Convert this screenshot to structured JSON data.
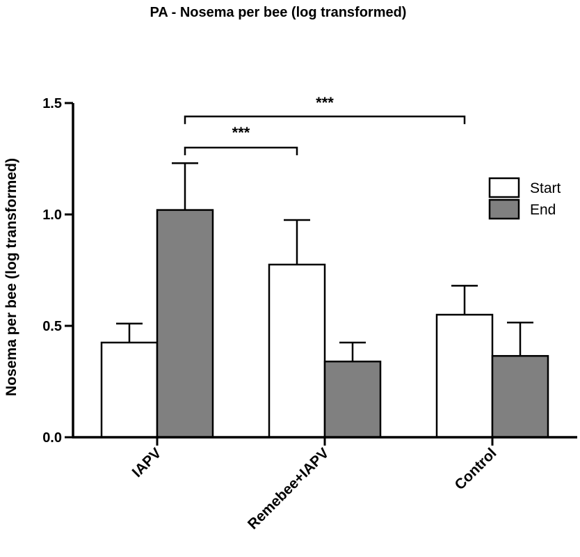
{
  "chart_data": {
    "type": "bar",
    "title": "PA - Nosema per bee (log transformed)",
    "xlabel": "",
    "ylabel": "Nosema per bee (log transformed)",
    "ylim": [
      0,
      1.5
    ],
    "yticks": [
      "0.0",
      "0.5",
      "1.0",
      "1.5"
    ],
    "categories": [
      "IAPV",
      "Remebee+IAPV",
      "Control"
    ],
    "series": [
      {
        "name": "Start",
        "color": "#ffffff",
        "values": [
          0.425,
          0.775,
          0.55
        ],
        "error": [
          0.085,
          0.2,
          0.13
        ]
      },
      {
        "name": "End",
        "color": "#808080",
        "values": [
          1.02,
          0.34,
          0.365
        ],
        "error": [
          0.21,
          0.085,
          0.15
        ]
      }
    ],
    "annotations": [
      {
        "label": "***",
        "from": "IAPV",
        "to": "Remebee+IAPV"
      },
      {
        "label": "***",
        "from": "IAPV",
        "to": "Control"
      }
    ],
    "legend_position": "top-right",
    "grid": false
  }
}
